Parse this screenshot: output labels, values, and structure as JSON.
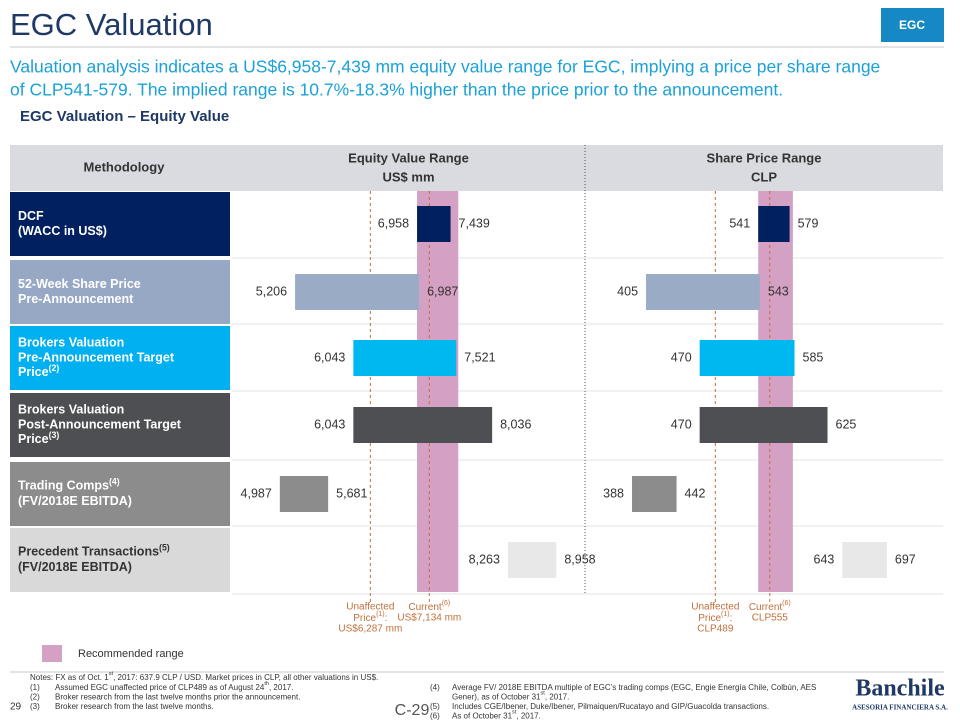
{
  "header": {
    "title": "EGC Valuation",
    "tag": "EGC",
    "subtitle_lines": [
      "Valuation analysis indicates a US$6,958-7,439 mm equity value range for EGC, implying a price per share range",
      "of CLP541-579. The implied range is 10.7%-18.3% higher than the price prior to the announcement."
    ],
    "section": "EGC Valuation – Equity Value"
  },
  "table": {
    "header": "Methodology",
    "rows": [
      {
        "lines": [
          "DCF",
          "(WACC in US$)"
        ],
        "bg": "#002060",
        "text_color": "#ffffff",
        "bar_color": "#002060"
      },
      {
        "lines": [
          "52-Week Share Price",
          "Pre-Announcement"
        ],
        "bg": "#97a8c4",
        "text_color": "#ffffff",
        "bar_color": "#9aabc5"
      },
      {
        "lines": [
          "Brokers Valuation",
          "Pre-Announcement Target",
          [
            "Price",
            {
              "sup": "(2)"
            }
          ]
        ],
        "bg": "#00b0f0",
        "text_color": "#ffffff",
        "bar_color": "#00b8f0"
      },
      {
        "lines": [
          "Brokers Valuation",
          "Post-Announcement Target",
          [
            "Price",
            {
              "sup": "(3)"
            }
          ]
        ],
        "bg": "#4d4f53",
        "text_color": "#ffffff",
        "bar_color": "#4d4f53"
      },
      {
        "lines": [
          [
            "Trading Comps",
            {
              "sup": "(4)"
            }
          ],
          "(FV/2018E EBITDA)"
        ],
        "bg": "#8c8c8c",
        "text_color": "#ffffff",
        "bar_color": "#8c8c8c"
      },
      {
        "lines": [
          [
            "Precedent Transactions",
            {
              "sup": "(5)"
            }
          ],
          "(FV/2018E EBITDA)"
        ],
        "bg": "#d9d9d9",
        "text_color": "#333333",
        "bar_color": "#e8e8e8"
      }
    ]
  },
  "chart_data": [
    {
      "type": "range_bar",
      "title": "Equity Value Range",
      "subtitle": "US$ mm",
      "xlim": [
        4300,
        9370
      ],
      "low": {
        "values": [
          6958,
          5206,
          6043,
          6043,
          4987,
          8263
        ],
        "value_labels": [
          "6,958",
          "5,206",
          "6,043",
          "6,043",
          "4,987",
          "8,263"
        ]
      },
      "high": {
        "values": [
          7439,
          6987,
          7521,
          8036,
          5681,
          8958
        ],
        "value_labels": [
          "7,439",
          "6,987",
          "7,521",
          "8,036",
          "5,681",
          "8,958"
        ]
      },
      "recommended_range": [
        6958,
        7550
      ],
      "references": [
        {
          "value": 6287,
          "lines": [
            "Unaffected",
            [
              "Price",
              {
                "sup": "(1)"
              },
              ":"
            ],
            "US$6,287 mm"
          ]
        },
        {
          "value": 7134,
          "lines": [
            [
              "Current",
              {
                "sup": "(6)"
              }
            ],
            "US$7,134 mm"
          ]
        }
      ]
    },
    {
      "type": "range_bar",
      "title": "Share Price Range",
      "subtitle": "CLP",
      "xlim": [
        331,
        765
      ],
      "low": {
        "values": [
          541,
          405,
          470,
          470,
          388,
          643
        ]
      },
      "high": {
        "values": [
          579,
          543,
          585,
          625,
          442,
          697
        ]
      },
      "recommended_range": [
        541,
        583
      ],
      "references": [
        {
          "value": 489,
          "lines": [
            "Unaffected",
            [
              "Price",
              {
                "sup": "(1)"
              },
              ":"
            ],
            "CLP489"
          ]
        },
        {
          "value": 555,
          "lines": [
            [
              "Current",
              {
                "sup": "(6)"
              }
            ],
            "CLP555"
          ]
        }
      ]
    }
  ],
  "legend": {
    "label": "Recommended range",
    "color": "#d4a0c4"
  },
  "notes": {
    "intro": [
      "Notes: FX as of Oct. 1",
      {
        "sup": "st"
      },
      ", 2017: 637.9 CLP / USD. Market prices in CLP, all other valuations in US$."
    ],
    "left": [
      {
        "num": "(1)",
        "lines": [
          [
            "Assumed EGC unaffected price of CLP489 as of August 24",
            {
              "sup": "th"
            },
            ", 2017."
          ]
        ]
      },
      {
        "num": "(2)",
        "lines": [
          "Broker research from the last twelve months prior the announcement."
        ]
      },
      {
        "num": "(3)",
        "lines": [
          "Broker research from the last twelve months."
        ]
      }
    ],
    "right": [
      {
        "num": "(4)",
        "lines": [
          "Average FV/ 2018E EBITDA multiple of EGC’s trading comps (EGC, Engie Energía Chile, Colbún, AES",
          [
            "Gener), as of October 31",
            {
              "sup": "st"
            },
            ", 2017."
          ]
        ]
      },
      {
        "num": "(5)",
        "lines": [
          "Includes CGE/Ibener, Duke/Ibener, Pilmaiquen/Rucatayo and GIP/Guacolda transactions."
        ]
      },
      {
        "num": "(6)",
        "lines": [
          [
            "As of October 31",
            {
              "sup": "st"
            },
            ", 2017."
          ]
        ]
      }
    ]
  },
  "footer": {
    "page": "29",
    "code": "C-29",
    "logo": "Banchile",
    "logo_sub": "ASESORIA FINANCIERA S.A."
  }
}
